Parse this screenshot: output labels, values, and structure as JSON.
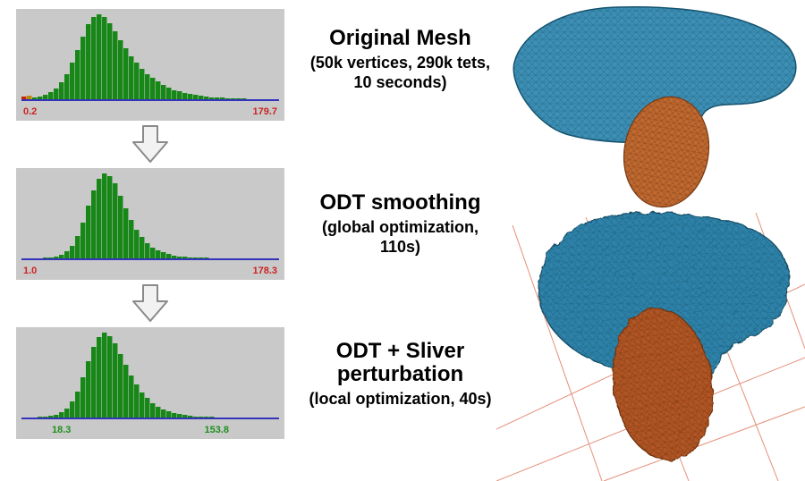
{
  "stages": [
    {
      "title": "Original Mesh",
      "subtitle": "(50k vertices, 290k tets,\n10 seconds)"
    },
    {
      "title": "ODT smoothing",
      "subtitle": "(global optimization,\n110s)"
    },
    {
      "title": "ODT + Sliver\nperturbation",
      "subtitle": "(local optimization, 40s)"
    }
  ],
  "icons": {
    "flow_arrow": "hollow-down-arrow"
  },
  "chart_data": [
    {
      "type": "bar",
      "title": "Dihedral angle histogram - original mesh",
      "xmin": 0.2,
      "xmax": 179.7,
      "xmin_label": "0.2",
      "xmax_label": "179.7",
      "label_color": "#cc2222",
      "bar_color": "#178717",
      "axis_color": "#3333bb",
      "label_insets": [
        8,
        8
      ],
      "special_colors": {
        "0": "#cc2200",
        "1": "#bb8800"
      },
      "values": [
        3,
        4,
        2,
        3,
        5,
        8,
        13,
        20,
        30,
        43,
        58,
        74,
        88,
        97,
        100,
        97,
        90,
        80,
        70,
        60,
        51,
        43,
        36,
        30,
        25,
        21,
        17,
        14,
        11,
        9,
        7.5,
        6,
        5,
        4,
        3.2,
        2.6,
        2,
        1.6,
        1.3,
        1,
        0.8,
        0.6,
        0.5,
        0.4,
        0.3,
        0.25,
        0.2,
        0.15
      ]
    },
    {
      "type": "bar",
      "title": "Dihedral angle histogram - after ODT smoothing",
      "xmin": 1.0,
      "xmax": 178.3,
      "xmin_label": "1.0",
      "xmax_label": "178.3",
      "label_color": "#cc2222",
      "bar_color": "#178717",
      "axis_color": "#3333bb",
      "label_insets": [
        8,
        8
      ],
      "special_colors": {},
      "values": [
        0.3,
        0.3,
        0.4,
        0.5,
        0.8,
        1.2,
        2,
        4,
        8,
        15,
        26,
        42,
        62,
        80,
        94,
        100,
        97,
        88,
        74,
        59,
        45,
        34,
        25,
        18,
        13,
        9.5,
        7,
        5,
        3.6,
        2.6,
        1.9,
        1.4,
        1,
        0.8,
        0.6,
        0.5,
        0.4,
        0.3,
        0.25,
        0.2,
        0.18,
        0.15,
        0.12,
        0.1,
        0.1,
        0.08,
        0.06,
        0.05
      ]
    },
    {
      "type": "bar",
      "title": "Dihedral angle histogram - after ODT + sliver perturbation",
      "xmin": 18.3,
      "xmax": 153.8,
      "xmin_label": "18.3",
      "xmax_label": "153.8",
      "label_color": "#1f8f1f",
      "bar_color": "#178717",
      "axis_color": "#3333bb",
      "label_insets": [
        40,
        62
      ],
      "special_colors": {},
      "values": [
        0.2,
        0.3,
        0.4,
        0.6,
        1,
        1.8,
        3,
        6,
        11,
        19,
        31,
        47,
        66,
        83,
        95,
        100,
        96,
        87,
        75,
        62,
        50,
        39,
        30,
        23,
        17,
        13,
        9.5,
        7,
        5.2,
        3.8,
        2.8,
        2,
        1.5,
        1.1,
        0.8,
        0.6,
        0.45,
        0.35,
        0.28,
        0.2,
        0.16,
        0.12,
        0.1,
        0.08,
        0.06,
        0.05,
        0.04,
        0.03
      ]
    }
  ],
  "meshes": {
    "top_primary": "#3e8fb5",
    "top_secondary": "#c06a32",
    "bottom_primary": "#2f81a8",
    "bottom_secondary": "#b05525",
    "grid_color": "#e5907a"
  }
}
